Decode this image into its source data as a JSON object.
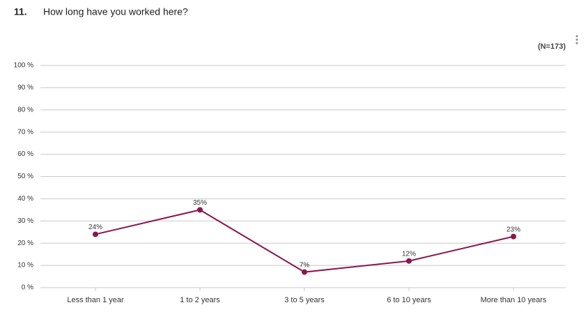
{
  "question_number": "11.",
  "chart_data": {
    "type": "line",
    "title": "How long have you worked here?",
    "annotation": "(N=173)",
    "categories": [
      "Less than 1 year",
      "1 to 2 years",
      "3 to 5 years",
      "6 to 10 years",
      "More than 10 years"
    ],
    "series": [
      {
        "name": null,
        "color": "#8a1650",
        "values": [
          24,
          35,
          7,
          12,
          23
        ],
        "value_labels": [
          "24%",
          "35%",
          "7%",
          "12%",
          "23%"
        ]
      }
    ],
    "ylim": [
      0,
      100
    ],
    "yticks": [
      {
        "value": 0,
        "label": "0 %"
      },
      {
        "value": 10,
        "label": "10 %"
      },
      {
        "value": 20,
        "label": "20 %"
      },
      {
        "value": 30,
        "label": "30 %"
      },
      {
        "value": 40,
        "label": "40 %"
      },
      {
        "value": 50,
        "label": "50 %"
      },
      {
        "value": 60,
        "label": "60 %"
      },
      {
        "value": 70,
        "label": "70 %"
      },
      {
        "value": 80,
        "label": "80 %"
      },
      {
        "value": 90,
        "label": "90 %"
      },
      {
        "value": 100,
        "label": "100 %"
      }
    ],
    "grid": true
  }
}
